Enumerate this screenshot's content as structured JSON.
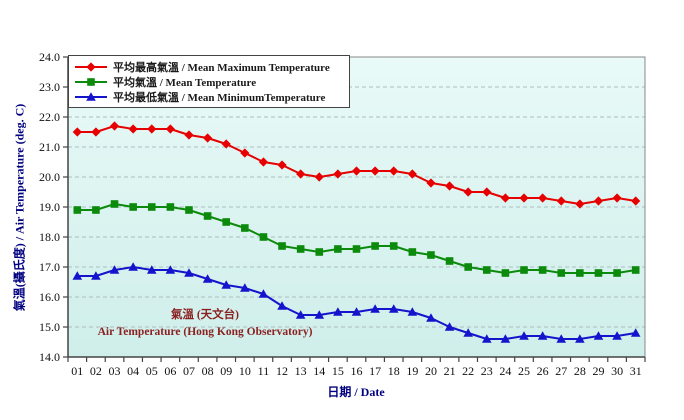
{
  "page": {
    "background": "#ffffff"
  },
  "chart_data": {
    "type": "line",
    "title": "",
    "xlabel": "日期 / Date",
    "ylabel": "氣溫(攝氏度) / Air Temperature (deg. C)",
    "x_categories": [
      "01",
      "02",
      "03",
      "04",
      "05",
      "06",
      "07",
      "08",
      "09",
      "10",
      "11",
      "12",
      "13",
      "14",
      "15",
      "16",
      "17",
      "18",
      "19",
      "20",
      "21",
      "22",
      "23",
      "24",
      "25",
      "26",
      "27",
      "28",
      "29",
      "30",
      "31"
    ],
    "ylim": [
      14.0,
      24.0
    ],
    "ytick_step": 1.0,
    "ytick_labels": [
      "14.0",
      "15.0",
      "16.0",
      "17.0",
      "18.0",
      "19.0",
      "20.0",
      "21.0",
      "22.0",
      "23.0",
      "24.0"
    ],
    "grid": "horizontal-dashed",
    "legend_position": "top-left-inside",
    "series": [
      {
        "name": "平均最高氣溫 / Mean Maximum Temperature",
        "marker": "diamond",
        "color": "#e60000",
        "values": [
          21.5,
          21.5,
          21.7,
          21.6,
          21.6,
          21.6,
          21.4,
          21.3,
          21.1,
          20.8,
          20.5,
          20.4,
          20.1,
          20.0,
          20.1,
          20.2,
          20.2,
          20.2,
          20.1,
          19.8,
          19.7,
          19.5,
          19.5,
          19.3,
          19.3,
          19.3,
          19.2,
          19.1,
          19.2,
          19.3,
          19.2
        ]
      },
      {
        "name": "平均氣溫 / Mean Temperature",
        "marker": "square",
        "color": "#0b8a0b",
        "values": [
          18.9,
          18.9,
          19.1,
          19.0,
          19.0,
          19.0,
          18.9,
          18.7,
          18.5,
          18.3,
          18.0,
          17.7,
          17.6,
          17.5,
          17.6,
          17.6,
          17.7,
          17.7,
          17.5,
          17.4,
          17.2,
          17.0,
          16.9,
          16.8,
          16.9,
          16.9,
          16.8,
          16.8,
          16.8,
          16.8,
          16.9
        ]
      },
      {
        "name": "平均最低氣溫 / Mean MinimumTemperature",
        "marker": "triangle-up",
        "color": "#1414cc",
        "values": [
          16.7,
          16.7,
          16.9,
          17.0,
          16.9,
          16.9,
          16.8,
          16.6,
          16.4,
          16.3,
          16.1,
          15.7,
          15.4,
          15.4,
          15.5,
          15.5,
          15.6,
          15.6,
          15.5,
          15.3,
          15.0,
          14.8,
          14.6,
          14.6,
          14.7,
          14.7,
          14.6,
          14.6,
          14.7,
          14.7,
          14.8
        ]
      }
    ],
    "annotation": {
      "line1": "氣溫 (天文台)",
      "line2": "Air Temperature (Hong Kong Observatory)",
      "color": "#8b2222"
    },
    "colors": {
      "plot_bg_top": "#e9faf8",
      "plot_bg_bottom": "#cfeeea",
      "grid_line": "#aabebe",
      "plot_border": "#888888",
      "axis_line": "#444444",
      "tick_label": "#111111",
      "axis_title": "#000080"
    }
  }
}
